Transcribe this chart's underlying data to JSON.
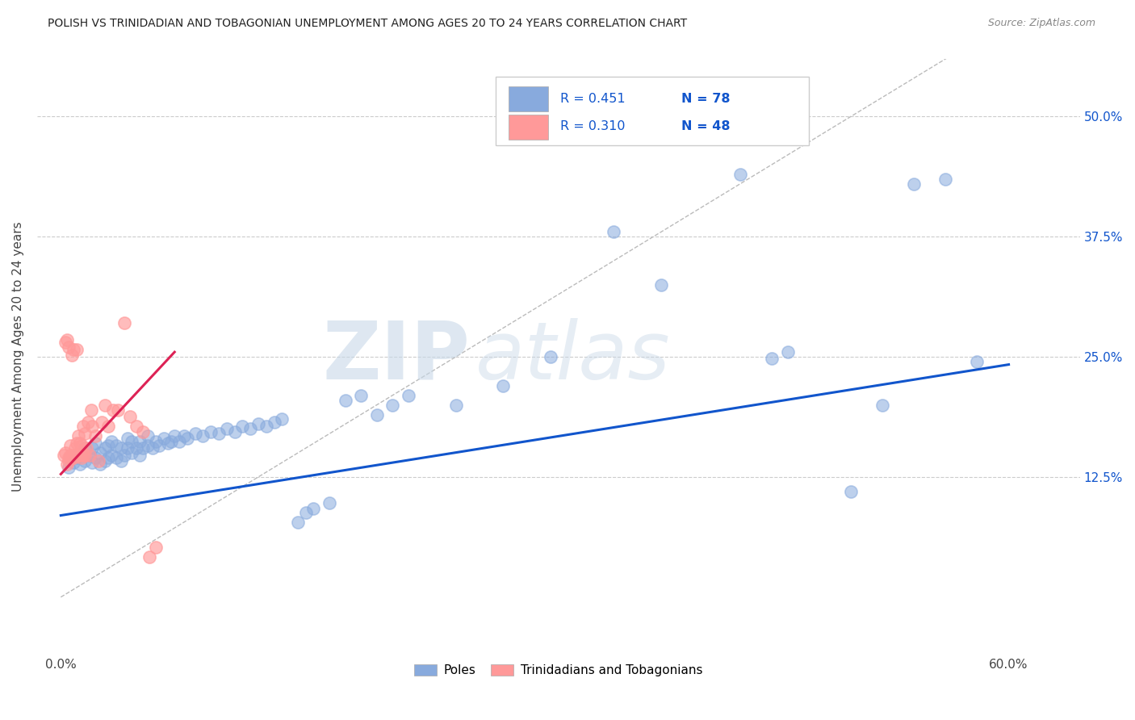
{
  "title": "POLISH VS TRINIDADIAN AND TOBAGONIAN UNEMPLOYMENT AMONG AGES 20 TO 24 YEARS CORRELATION CHART",
  "source": "Source: ZipAtlas.com",
  "xlabel_ticks": [
    "0.0%",
    "",
    "",
    "",
    "",
    "",
    "60.0%"
  ],
  "xlabel_vals": [
    0.0,
    0.1,
    0.2,
    0.3,
    0.4,
    0.5,
    0.6
  ],
  "ylabel": "Unemployment Among Ages 20 to 24 years",
  "ylabel_ticks": [
    "12.5%",
    "25.0%",
    "37.5%",
    "50.0%"
  ],
  "ylabel_vals": [
    0.125,
    0.25,
    0.375,
    0.5
  ],
  "ylim": [
    -0.06,
    0.56
  ],
  "xlim": [
    -0.015,
    0.645
  ],
  "watermark_zip": "ZIP",
  "watermark_atlas": "atlas",
  "legend_R_blue": "R = 0.451",
  "legend_N_blue": "N = 78",
  "legend_R_pink": "R = 0.310",
  "legend_N_pink": "N = 48",
  "legend_label_blue": "Poles",
  "legend_label_pink": "Trinidadians and Tobagonians",
  "blue_color": "#88AADD",
  "pink_color": "#FF9999",
  "trend_blue": "#1155CC",
  "trend_pink": "#DD2255",
  "trend_diag_color": "#BBBBBB",
  "blue_x": [
    0.005,
    0.008,
    0.01,
    0.012,
    0.015,
    0.015,
    0.018,
    0.02,
    0.02,
    0.022,
    0.022,
    0.025,
    0.025,
    0.028,
    0.028,
    0.03,
    0.03,
    0.032,
    0.032,
    0.035,
    0.035,
    0.038,
    0.038,
    0.04,
    0.042,
    0.042,
    0.045,
    0.045,
    0.048,
    0.05,
    0.05,
    0.052,
    0.055,
    0.055,
    0.058,
    0.06,
    0.062,
    0.065,
    0.068,
    0.07,
    0.072,
    0.075,
    0.078,
    0.08,
    0.085,
    0.09,
    0.095,
    0.1,
    0.105,
    0.11,
    0.115,
    0.12,
    0.125,
    0.13,
    0.135,
    0.14,
    0.15,
    0.155,
    0.16,
    0.17,
    0.18,
    0.19,
    0.2,
    0.21,
    0.22,
    0.25,
    0.28,
    0.31,
    0.35,
    0.38,
    0.43,
    0.45,
    0.46,
    0.5,
    0.52,
    0.54,
    0.56,
    0.58
  ],
  "blue_y": [
    0.135,
    0.14,
    0.145,
    0.138,
    0.142,
    0.155,
    0.148,
    0.14,
    0.155,
    0.145,
    0.16,
    0.138,
    0.15,
    0.142,
    0.155,
    0.145,
    0.158,
    0.148,
    0.162,
    0.145,
    0.158,
    0.142,
    0.155,
    0.148,
    0.155,
    0.165,
    0.15,
    0.162,
    0.155,
    0.148,
    0.162,
    0.155,
    0.158,
    0.168,
    0.155,
    0.162,
    0.158,
    0.165,
    0.16,
    0.162,
    0.168,
    0.162,
    0.168,
    0.165,
    0.17,
    0.168,
    0.172,
    0.17,
    0.175,
    0.172,
    0.178,
    0.175,
    0.18,
    0.178,
    0.182,
    0.185,
    0.078,
    0.088,
    0.092,
    0.098,
    0.205,
    0.21,
    0.19,
    0.2,
    0.21,
    0.2,
    0.22,
    0.25,
    0.38,
    0.325,
    0.44,
    0.248,
    0.255,
    0.11,
    0.2,
    0.43,
    0.435,
    0.245
  ],
  "pink_x": [
    0.002,
    0.003,
    0.003,
    0.004,
    0.004,
    0.005,
    0.005,
    0.005,
    0.006,
    0.006,
    0.007,
    0.007,
    0.008,
    0.008,
    0.008,
    0.009,
    0.009,
    0.01,
    0.01,
    0.01,
    0.011,
    0.011,
    0.012,
    0.012,
    0.013,
    0.013,
    0.014,
    0.014,
    0.015,
    0.015,
    0.016,
    0.017,
    0.018,
    0.019,
    0.02,
    0.022,
    0.024,
    0.026,
    0.028,
    0.03,
    0.033,
    0.036,
    0.04,
    0.044,
    0.048,
    0.052,
    0.056,
    0.06
  ],
  "pink_y": [
    0.148,
    0.15,
    0.265,
    0.138,
    0.268,
    0.142,
    0.26,
    0.145,
    0.148,
    0.158,
    0.252,
    0.145,
    0.148,
    0.258,
    0.145,
    0.148,
    0.155,
    0.148,
    0.16,
    0.258,
    0.148,
    0.168,
    0.148,
    0.16,
    0.145,
    0.158,
    0.148,
    0.178,
    0.148,
    0.17,
    0.155,
    0.182,
    0.148,
    0.195,
    0.178,
    0.168,
    0.142,
    0.182,
    0.2,
    0.178,
    0.195,
    0.195,
    0.285,
    0.188,
    0.178,
    0.172,
    0.042,
    0.052
  ],
  "blue_trend_x0": 0.0,
  "blue_trend_x1": 0.6,
  "blue_trend_y0": 0.085,
  "blue_trend_y1": 0.242,
  "pink_trend_x0": 0.0,
  "pink_trend_x1": 0.072,
  "pink_trend_y0": 0.128,
  "pink_trend_y1": 0.255
}
